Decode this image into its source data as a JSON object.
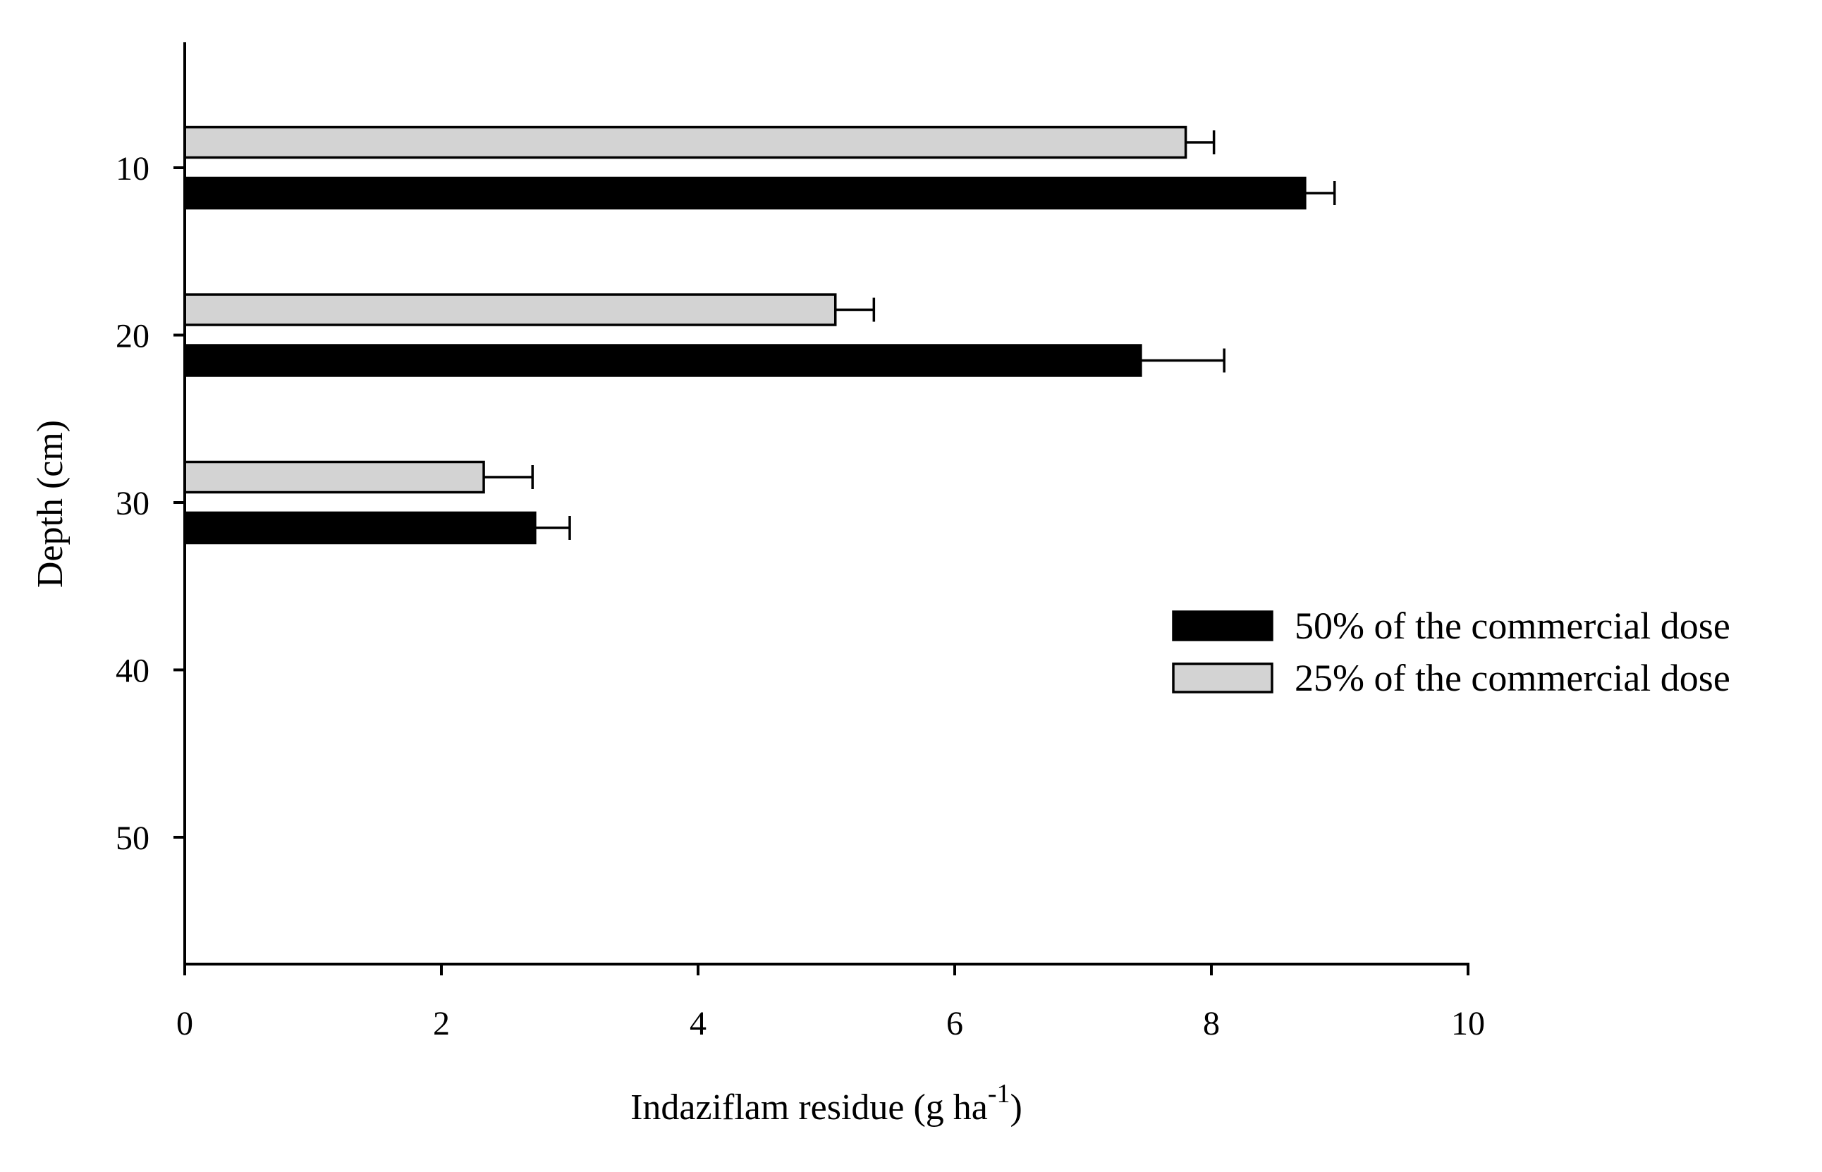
{
  "chart_data": {
    "type": "bar",
    "orientation": "horizontal",
    "categories": [
      "10",
      "20",
      "30"
    ],
    "series": [
      {
        "name": "25% of the commercial dose",
        "color": "#d3d3d3",
        "values": [
          7.8,
          5.07,
          2.33
        ],
        "errors": [
          0.22,
          0.3,
          0.38
        ]
      },
      {
        "name": "50% of the commercial dose",
        "color": "#000000",
        "values": [
          8.73,
          7.45,
          2.73
        ],
        "errors": [
          0.23,
          0.65,
          0.27
        ]
      }
    ],
    "xlabel": "Indaziflam residue (g ha",
    "xlabel_sup": "-1",
    "xlabel_suffix": ")",
    "ylabel": "Depth (cm)",
    "xlim": [
      0,
      10
    ],
    "xticks": [
      "0",
      "2",
      "4",
      "6",
      "8",
      "10"
    ],
    "ylim": [
      2.5,
      57.5
    ],
    "yticks": [
      "10",
      "20",
      "30",
      "40",
      "50"
    ],
    "legend_order": [
      "50% of the commercial dose",
      "25% of the commercial dose"
    ],
    "legend_position": "right",
    "grid": false
  }
}
